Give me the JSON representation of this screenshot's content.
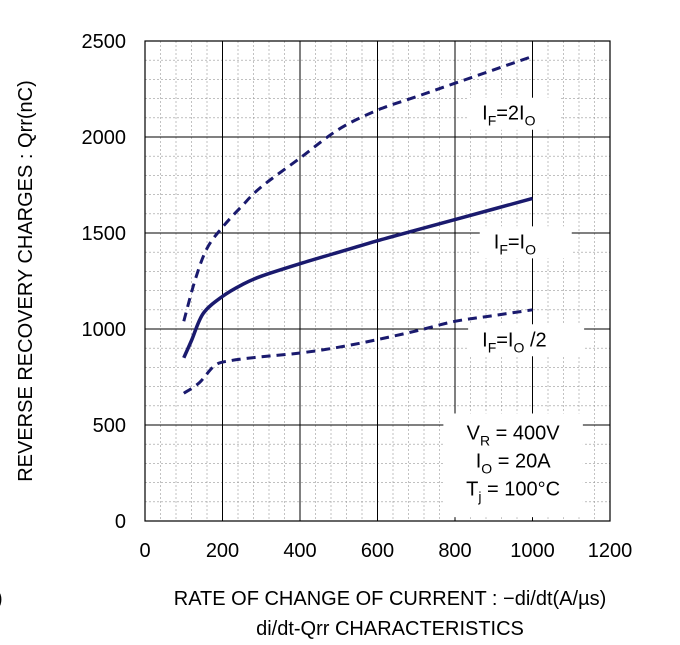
{
  "chart_data": {
    "type": "line",
    "title": "",
    "xlabel": "RATE OF CHANGE OF CURRENT : −di/dt(A/µs)",
    "ylabel": "REVERSE RECOVERY  CHARGES : Qrr(nC)",
    "caption": "di/dt-Qrr CHARACTERISTICS",
    "stray_text": ")",
    "xlim": [
      0,
      1200
    ],
    "ylim": [
      0,
      2500
    ],
    "x_ticks": [
      "0",
      "200",
      "400",
      "600",
      "800",
      "1000",
      "1200"
    ],
    "y_ticks": [
      "0",
      "500",
      "1000",
      "1500",
      "2000",
      "2500"
    ],
    "grid": true,
    "series": [
      {
        "name": "IF=2IO",
        "style": "dashed",
        "color": "#1a1a6e",
        "x": [
          100,
          130,
          160,
          200,
          250,
          300,
          400,
          500,
          600,
          700,
          800,
          900,
          1000
        ],
        "y": [
          1040,
          1260,
          1420,
          1530,
          1640,
          1740,
          1890,
          2040,
          2140,
          2210,
          2280,
          2350,
          2420
        ]
      },
      {
        "name": "IF=IO",
        "style": "solid",
        "color": "#1a1a6e",
        "x": [
          100,
          120,
          150,
          200,
          250,
          300,
          400,
          500,
          600,
          700,
          800,
          900,
          1000
        ],
        "y": [
          850,
          940,
          1080,
          1170,
          1230,
          1275,
          1340,
          1400,
          1460,
          1515,
          1570,
          1625,
          1680
        ]
      },
      {
        "name": "IF=IO /2",
        "style": "dashed",
        "color": "#1a1a6e",
        "x": [
          100,
          140,
          180,
          220,
          300,
          400,
          500,
          600,
          700,
          800,
          900,
          1000
        ],
        "y": [
          665,
          720,
          810,
          835,
          855,
          875,
          905,
          945,
          990,
          1040,
          1070,
          1100
        ]
      }
    ],
    "labels": [
      {
        "id": "if-2io",
        "main": "I",
        "sub1": "F",
        "mid": "=2I",
        "sub2": "O",
        "tail": "",
        "x": 870,
        "y": 2090
      },
      {
        "id": "if-io",
        "main": "I",
        "sub1": "F",
        "mid": "=I",
        "sub2": "O",
        "tail": "",
        "x": 900,
        "y": 1420
      },
      {
        "id": "if-io2",
        "main": "I",
        "sub1": "F",
        "mid": "=I",
        "sub2": "O",
        "tail": " /2",
        "x": 870,
        "y": 910
      }
    ],
    "conditions": [
      {
        "main": "V",
        "sub": "R",
        "rest": " = 400V"
      },
      {
        "main": "I",
        "sub": "O",
        "rest": " = 20A"
      },
      {
        "main": "T",
        "sub": "j",
        "rest": " = 100°C"
      }
    ]
  }
}
